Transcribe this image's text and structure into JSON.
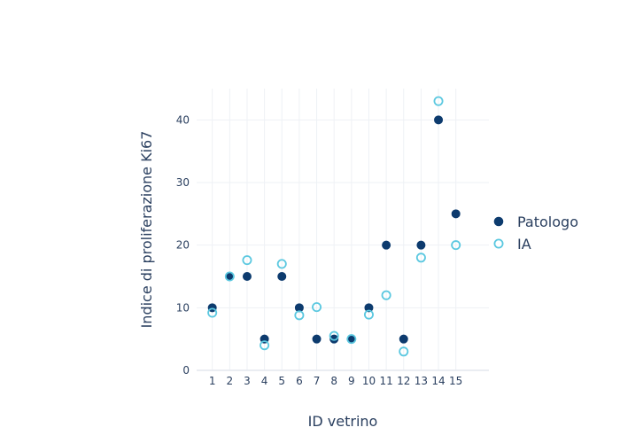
{
  "chart_data": {
    "type": "scatter",
    "title": "",
    "xlabel": "ID vetrino",
    "ylabel": "Indice di proliferazione Ki67",
    "x": [
      1,
      2,
      3,
      4,
      5,
      6,
      7,
      8,
      9,
      10,
      11,
      12,
      13,
      14,
      15
    ],
    "x_ticks": [
      "1",
      "2",
      "3",
      "4",
      "5",
      "6",
      "7",
      "8",
      "9",
      "10",
      "11",
      "12",
      "13",
      "14",
      "15"
    ],
    "xlim": [
      0.1,
      16.9
    ],
    "ylim": [
      0,
      45
    ],
    "y_ticks": [
      0,
      10,
      20,
      30,
      40
    ],
    "grid": true,
    "legend_position": "right",
    "series": [
      {
        "name": "Patologo",
        "marker": "filled-circle",
        "color": "#0d3b6e",
        "values": [
          10,
          15,
          15,
          5,
          15,
          10,
          5,
          5,
          5,
          10,
          20,
          5,
          20,
          40,
          25
        ]
      },
      {
        "name": "IA",
        "marker": "open-circle",
        "color": "#5bc8e0",
        "values": [
          9.2,
          15,
          17.6,
          4,
          17,
          8.8,
          10.1,
          5.5,
          5,
          8.9,
          12,
          3,
          18,
          43,
          20
        ]
      }
    ]
  }
}
